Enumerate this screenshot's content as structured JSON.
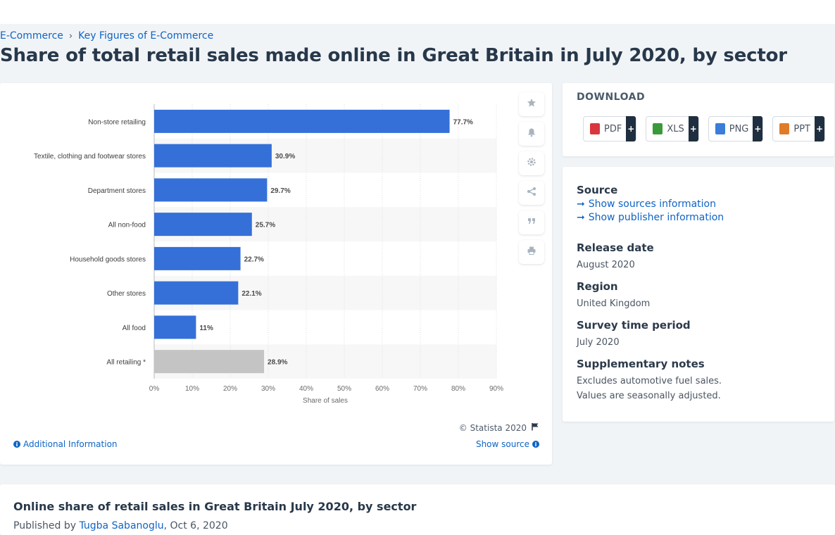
{
  "breadcrumb": {
    "item1": "E-Commerce",
    "item2": "Key Figures of E-Commerce"
  },
  "page_title": "Share of total retail sales made online in Great Britain in July 2020, by sector",
  "chart_data": {
    "type": "bar",
    "orientation": "horizontal",
    "categories": [
      "Non-store retailing",
      "Textile, clothing and footwear stores",
      "Department stores",
      "All non-food",
      "Household goods stores",
      "Other stores",
      "All food",
      "All retailing *"
    ],
    "values": [
      77.7,
      30.9,
      29.7,
      25.7,
      22.7,
      22.1,
      11,
      28.9
    ],
    "data_labels": [
      "77.7%",
      "30.9%",
      "29.7%",
      "25.7%",
      "22.7%",
      "22.1%",
      "11%",
      "28.9%"
    ],
    "bar_colors": [
      "#3470d8",
      "#3470d8",
      "#3470d8",
      "#3470d8",
      "#3470d8",
      "#3470d8",
      "#3470d8",
      "#c4c4c4"
    ],
    "xlabel": "Share of sales",
    "ylabel": "",
    "xlim": [
      0,
      90
    ],
    "x_ticks": [
      "0%",
      "10%",
      "20%",
      "30%",
      "40%",
      "50%",
      "60%",
      "70%",
      "80%",
      "90%"
    ],
    "grid": true,
    "legend": "none"
  },
  "chart_footer": {
    "copyright": "© Statista 2020",
    "additional_info": "Additional Information",
    "show_source": "Show source"
  },
  "tools": [
    "star-icon",
    "bell-icon",
    "gear-icon",
    "share-icon",
    "quote-icon",
    "print-icon"
  ],
  "download": {
    "title": "DOWNLOAD",
    "buttons": [
      {
        "label": "PDF",
        "color": "#d9363e"
      },
      {
        "label": "XLS",
        "color": "#3a9a3a"
      },
      {
        "label": "PNG",
        "color": "#3b7dd8"
      },
      {
        "label": "PPT",
        "color": "#e07b2a"
      }
    ],
    "plus": "+"
  },
  "meta": {
    "source_heading": "Source",
    "show_sources": "Show sources information",
    "show_publisher": "Show publisher information",
    "release_heading": "Release date",
    "release_value": "August 2020",
    "region_heading": "Region",
    "region_value": "United Kingdom",
    "survey_heading": "Survey time period",
    "survey_value": "July 2020",
    "notes_heading": "Supplementary notes",
    "notes_line1": "Excludes automotive fuel sales.",
    "notes_line2": "Values are seasonally adjusted."
  },
  "bottom": {
    "title": "Online share of retail sales in Great Britain July 2020, by sector",
    "published_by": "Published by",
    "author": "Tugba Sabanoglu",
    "date": ", Oct 6, 2020"
  },
  "colors": {
    "accent": "#0f64c4",
    "bar": "#3470d8",
    "bar_total": "#c4c4c4"
  }
}
